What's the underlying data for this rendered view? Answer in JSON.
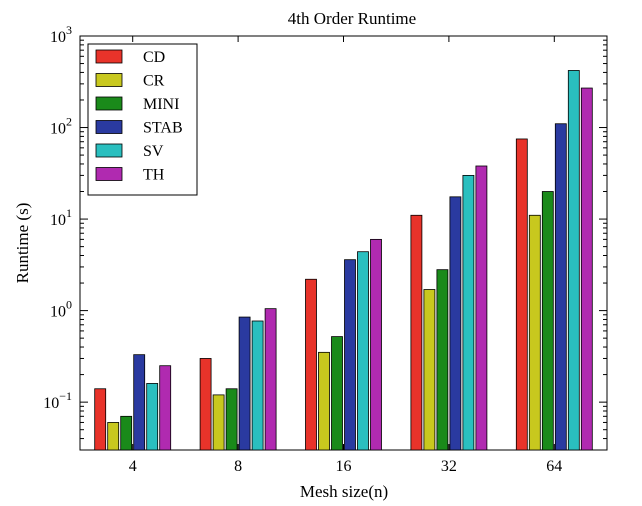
{
  "chart_data": {
    "type": "bar",
    "title": "4th Order Runtime",
    "xlabel": "Mesh size(n)",
    "ylabel": "Runtime (s)",
    "yscale": "log",
    "ylim": [
      0.03,
      1000
    ],
    "grid": false,
    "legend_position": "top-left",
    "categories": [
      "4",
      "8",
      "16",
      "32",
      "64"
    ],
    "yticks": [
      {
        "value": 0.1,
        "base": "10",
        "exp": "−1"
      },
      {
        "value": 1,
        "base": "10",
        "exp": "0"
      },
      {
        "value": 10,
        "base": "10",
        "exp": "1"
      },
      {
        "value": 100,
        "base": "10",
        "exp": "2"
      },
      {
        "value": 1000,
        "base": "10",
        "exp": "3"
      }
    ],
    "series": [
      {
        "name": "CD",
        "color": "#e8332a",
        "values": [
          0.14,
          0.3,
          2.2,
          11,
          75
        ]
      },
      {
        "name": "CR",
        "color": "#c8c81e",
        "values": [
          0.06,
          0.12,
          0.35,
          1.7,
          11
        ]
      },
      {
        "name": "MINI",
        "color": "#1a8a1a",
        "values": [
          0.07,
          0.14,
          0.52,
          2.8,
          20
        ]
      },
      {
        "name": "STAB",
        "color": "#2a3aa0",
        "values": [
          0.33,
          0.85,
          3.6,
          17.5,
          110
        ]
      },
      {
        "name": "SV",
        "color": "#2abfbf",
        "values": [
          0.16,
          0.77,
          4.4,
          30,
          420
        ]
      },
      {
        "name": "TH",
        "color": "#b02ab0",
        "values": [
          0.25,
          1.05,
          6.0,
          38,
          270
        ]
      }
    ]
  }
}
